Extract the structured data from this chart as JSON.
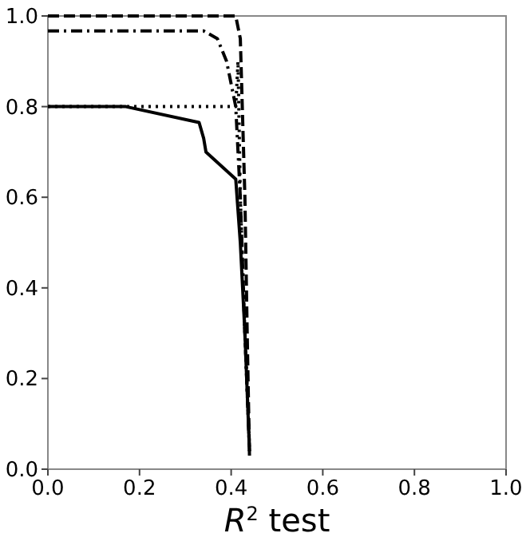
{
  "chart_data": {
    "type": "line",
    "xlabel": "R$^{2}$ test",
    "xlim": [
      0,
      1
    ],
    "ylim": [
      0,
      1
    ],
    "xticks": [
      {
        "value": 0,
        "label": "0.0"
      },
      0.2,
      0.4,
      0.6,
      0.8,
      {
        "value": 1,
        "label": "1.0"
      }
    ],
    "yticks": [
      {
        "value": 0,
        "label": "0.0"
      },
      0.2,
      0.4,
      0.6,
      0.8,
      {
        "value": 1,
        "label": "1.0"
      }
    ],
    "grid": false,
    "series": [
      {
        "color": "#000000",
        "line_style": "solid",
        "x": [
          0,
          0.17,
          0.33,
          0.34,
          0.345,
          0.41,
          0.42,
          0.43,
          0.44
        ],
        "values": [
          0.8,
          0.8,
          0.765,
          0.73,
          0.7,
          0.64,
          0.5,
          0.3,
          0.04
        ]
      },
      {
        "color": "#000000",
        "line_style": "dotted",
        "x": [
          0,
          0.41,
          0.415,
          0.42,
          0.43,
          0.44
        ],
        "values": [
          0.8,
          0.8,
          0.9,
          0.6,
          0.3,
          0.05
        ]
      },
      {
        "color": "#000000",
        "line_style": "dashdot",
        "x": [
          0,
          0.34,
          0.37,
          0.39,
          0.41,
          0.42,
          0.43,
          0.44
        ],
        "values": [
          0.967,
          0.967,
          0.95,
          0.9,
          0.8,
          0.6,
          0.3,
          0.04
        ]
      },
      {
        "color": "#000000",
        "line_style": "dashed",
        "x": [
          0,
          0.41,
          0.42,
          0.43,
          0.435,
          0.44
        ],
        "values": [
          1,
          1,
          0.95,
          0.6,
          0.3,
          0.03
        ]
      }
    ]
  }
}
